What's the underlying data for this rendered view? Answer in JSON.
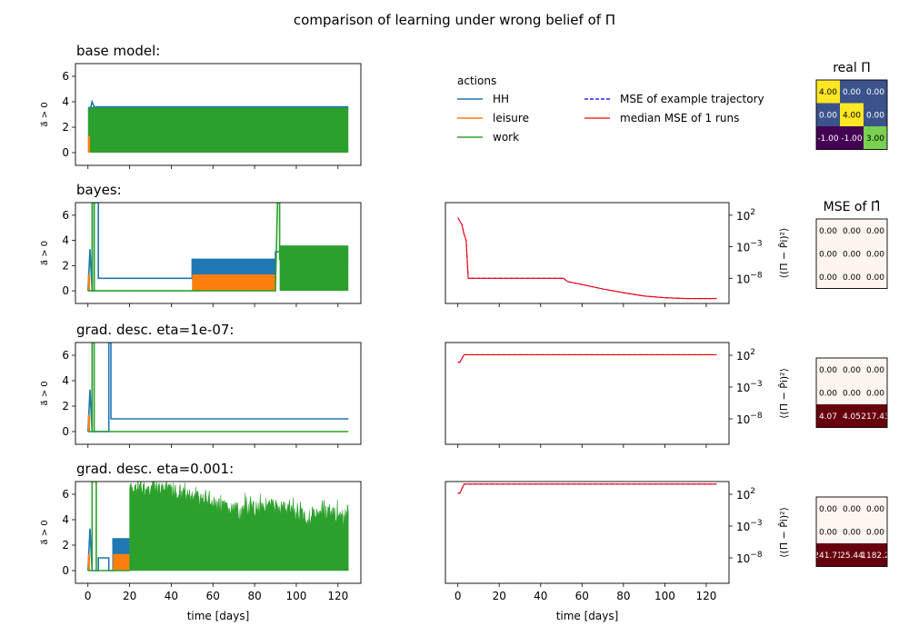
{
  "figure": {
    "title": "comparison of learning under wrong belief of Π",
    "legend": {
      "actions_title": "actions",
      "actions": [
        {
          "label": "HH",
          "color": "#1f77b4",
          "style": "solid"
        },
        {
          "label": "leisure",
          "color": "#ff7f0e",
          "style": "solid"
        },
        {
          "label": "work",
          "color": "#2ca02c",
          "style": "solid"
        }
      ],
      "mse": [
        {
          "label": "MSE of example trajectory",
          "color": "#0000ff",
          "style": "dashed"
        },
        {
          "label": "median MSE of 1 runs",
          "color": "#ff0000",
          "style": "solid"
        }
      ]
    },
    "xlabel": "time [days]",
    "left_ylabel": "a⃗ > 0",
    "right_ylabel": "⟨(Π − P̂i)²⟩",
    "real_pi_title": "real Π",
    "mse_pi_title": "MSE of Π̂"
  },
  "chart_data": [
    {
      "type": "line",
      "panel": "actions",
      "title": "base model:",
      "xlim": [
        -6,
        131
      ],
      "ylim": [
        -1,
        7
      ],
      "yticks": [
        0,
        2,
        4,
        6
      ],
      "xticks": [
        0,
        20,
        40,
        60,
        80,
        100,
        120
      ],
      "segments": [
        {
          "series": "work",
          "kind": "band",
          "x": [
            0,
            125
          ],
          "low": 0,
          "high": 3.6
        },
        {
          "series": "HH",
          "kind": "line",
          "x": [
            1,
            2,
            3,
            125
          ],
          "y": [
            3.3,
            4.0,
            3.6,
            3.6
          ]
        },
        {
          "series": "leisure",
          "kind": "band",
          "x": [
            0,
            1
          ],
          "low": 0,
          "high": 1.3
        }
      ]
    },
    {
      "type": "line",
      "panel": "actions",
      "title": "bayes:",
      "xlim": [
        -6,
        131
      ],
      "ylim": [
        -1,
        7
      ],
      "yticks": [
        0,
        2,
        4,
        6
      ],
      "xticks": [
        0,
        20,
        40,
        60,
        80,
        100,
        120
      ],
      "segments": [
        {
          "series": "HH",
          "kind": "line",
          "x": [
            0,
            1,
            2,
            3,
            3,
            5,
            5,
            50,
            50,
            90,
            90,
            125
          ],
          "y": [
            0,
            3.3,
            0,
            0,
            7,
            7,
            1,
            1,
            2.5,
            2.5,
            3.1,
            3.1
          ]
        },
        {
          "series": "HH",
          "kind": "band",
          "x": [
            50,
            90
          ],
          "low": 0,
          "high": 2.5
        },
        {
          "series": "leisure",
          "kind": "band",
          "x": [
            50,
            90
          ],
          "low": 0,
          "high": 1.3
        },
        {
          "series": "leisure",
          "kind": "band",
          "x": [
            0,
            1
          ],
          "low": 0,
          "high": 1.3
        },
        {
          "series": "work",
          "kind": "line",
          "x": [
            0,
            2,
            2,
            3,
            3,
            50,
            90,
            91,
            92,
            92,
            125
          ],
          "y": [
            0,
            0,
            7,
            7,
            0,
            0,
            0,
            7,
            7,
            2.5,
            2.5
          ]
        },
        {
          "series": "work",
          "kind": "band",
          "x": [
            92,
            125
          ],
          "low": 0,
          "high": 3.6
        }
      ]
    },
    {
      "type": "line",
      "panel": "actions",
      "title": "grad. desc. eta=1e-07:",
      "xlim": [
        -6,
        131
      ],
      "ylim": [
        -1,
        7
      ],
      "yticks": [
        0,
        2,
        4,
        6
      ],
      "xticks": [
        0,
        20,
        40,
        60,
        80,
        100,
        120
      ],
      "segments": [
        {
          "series": "HH",
          "kind": "line",
          "x": [
            0,
            1,
            2,
            3,
            10,
            10,
            11,
            11,
            125
          ],
          "y": [
            0,
            3.3,
            0,
            0,
            0,
            7,
            7,
            1,
            1
          ]
        },
        {
          "series": "leisure",
          "kind": "band",
          "x": [
            0,
            1
          ],
          "low": 0,
          "high": 1.3
        },
        {
          "series": "work",
          "kind": "line",
          "x": [
            0,
            2,
            2,
            3,
            3,
            125
          ],
          "y": [
            0,
            0,
            7,
            7,
            0,
            0
          ]
        }
      ]
    },
    {
      "type": "line",
      "panel": "actions",
      "title": "grad. desc. eta=0.001:",
      "xlim": [
        -6,
        131
      ],
      "ylim": [
        -1,
        7
      ],
      "yticks": [
        0,
        2,
        4,
        6
      ],
      "xticks": [
        0,
        20,
        40,
        60,
        80,
        100,
        120
      ],
      "segments": [
        {
          "series": "HH",
          "kind": "line",
          "x": [
            0,
            1,
            2,
            3,
            5,
            5,
            10,
            10,
            12,
            12,
            20
          ],
          "y": [
            0,
            3.3,
            0,
            0,
            0,
            1,
            1,
            0,
            0,
            2.5,
            2.5
          ]
        },
        {
          "series": "HH",
          "kind": "band",
          "x": [
            12,
            20
          ],
          "low": 0,
          "high": 2.5
        },
        {
          "series": "leisure",
          "kind": "band",
          "x": [
            12,
            20
          ],
          "low": 0,
          "high": 1.3
        },
        {
          "series": "leisure",
          "kind": "band",
          "x": [
            0,
            1
          ],
          "low": 0,
          "high": 1.3
        },
        {
          "series": "work",
          "kind": "line",
          "x": [
            0,
            2,
            2,
            4,
            4,
            20
          ],
          "y": [
            0,
            0,
            7,
            7,
            0,
            0
          ]
        },
        {
          "series": "work",
          "kind": "noise",
          "x": [
            20,
            125
          ],
          "profile": [
            [
              20,
              7
            ],
            [
              35,
              7
            ],
            [
              45,
              6.6
            ],
            [
              55,
              6.2
            ],
            [
              65,
              5.5
            ],
            [
              75,
              5.3
            ],
            [
              85,
              5.8
            ],
            [
              95,
              5.5
            ],
            [
              105,
              4.8
            ],
            [
              115,
              5.2
            ],
            [
              125,
              4.6
            ]
          ]
        }
      ]
    },
    {
      "type": "line",
      "panel": "mse",
      "scale": "log",
      "xlim": [
        -6,
        131
      ],
      "ylog_range": [
        -12,
        4
      ],
      "yticks_exp": [
        2,
        -3,
        -8
      ],
      "series": [
        {
          "name": "MSE of example trajectory",
          "points": [
            [
              0,
              40.0
            ],
            [
              2,
              3.0
            ],
            [
              3,
              0.1
            ],
            [
              4,
              0.01
            ],
            [
              5,
              1e-08
            ],
            [
              51,
              1e-08
            ],
            [
              53,
              3e-09
            ],
            [
              60,
              1e-09
            ],
            [
              70,
              2e-10
            ],
            [
              80,
              5e-11
            ],
            [
              90,
              1.5e-11
            ],
            [
              100,
              8e-12
            ],
            [
              110,
              6e-12
            ],
            [
              125,
              6e-12
            ]
          ]
        },
        {
          "name": "median MSE of 1 runs",
          "points": [
            [
              0,
              40.0
            ],
            [
              2,
              3.0
            ],
            [
              3,
              0.1
            ],
            [
              4,
              0.01
            ],
            [
              5,
              1e-08
            ],
            [
              51,
              1e-08
            ],
            [
              53,
              3e-09
            ],
            [
              60,
              1e-09
            ],
            [
              70,
              2e-10
            ],
            [
              80,
              5e-11
            ],
            [
              90,
              1.5e-11
            ],
            [
              100,
              8e-12
            ],
            [
              110,
              6e-12
            ],
            [
              125,
              6e-12
            ]
          ]
        }
      ]
    },
    {
      "type": "line",
      "panel": "mse",
      "scale": "log",
      "xlim": [
        -6,
        131
      ],
      "ylog_range": [
        -12,
        4
      ],
      "yticks_exp": [
        2,
        -3,
        -8
      ],
      "series": [
        {
          "name": "MSE of example trajectory",
          "points": [
            [
              0,
              8.0
            ],
            [
              1,
              8.0
            ],
            [
              3,
              120.0
            ],
            [
              125,
              120.0
            ]
          ]
        },
        {
          "name": "median MSE of 1 runs",
          "points": [
            [
              0,
              8.0
            ],
            [
              1,
              8.0
            ],
            [
              3,
              120.0
            ],
            [
              125,
              120.0
            ]
          ]
        }
      ]
    },
    {
      "type": "line",
      "panel": "mse",
      "scale": "log",
      "xlim": [
        -6,
        131
      ],
      "ylog_range": [
        -12,
        4
      ],
      "yticks_exp": [
        2,
        -3,
        -8
      ],
      "series": [
        {
          "name": "MSE of example trajectory",
          "points": [
            [
              0,
              150.0
            ],
            [
              1,
              150.0
            ],
            [
              3,
              4000.0
            ],
            [
              125,
              4000.0
            ]
          ]
        },
        {
          "name": "median MSE of 1 runs",
          "points": [
            [
              0,
              150.0
            ],
            [
              1,
              150.0
            ],
            [
              3,
              4000.0
            ],
            [
              125,
              4000.0
            ]
          ]
        }
      ]
    },
    {
      "type": "heatmap",
      "panel": "matrix",
      "title": "real Π",
      "cells": [
        [
          "4.00",
          "0.00",
          "0.00"
        ],
        [
          "0.00",
          "4.00",
          "0.00"
        ],
        [
          "-1.00",
          "-1.00",
          "3.00"
        ]
      ],
      "colors": [
        [
          "#fde725",
          "#3b528b",
          "#3b528b"
        ],
        [
          "#3b528b",
          "#fde725",
          "#3b528b"
        ],
        [
          "#440154",
          "#440154",
          "#7ad151"
        ]
      ],
      "text_colors": [
        [
          "#000000",
          "#ffffff",
          "#ffffff"
        ],
        [
          "#ffffff",
          "#000000",
          "#ffffff"
        ],
        [
          "#ffffff",
          "#ffffff",
          "#000000"
        ]
      ]
    },
    {
      "type": "heatmap",
      "panel": "matrix",
      "title": "MSE of Π̂",
      "cells": [
        [
          "0.00",
          "0.00",
          "0.00"
        ],
        [
          "0.00",
          "0.00",
          "0.00"
        ],
        [
          "0.00",
          "0.00",
          "0.00"
        ]
      ],
      "colors": [
        [
          "#fff5f0",
          "#fff5f0",
          "#fff5f0"
        ],
        [
          "#fff5f0",
          "#fff5f0",
          "#fff5f0"
        ],
        [
          "#fff5f0",
          "#fff5f0",
          "#fff5f0"
        ]
      ],
      "text_colors": [
        [
          "#000000",
          "#000000",
          "#000000"
        ],
        [
          "#000000",
          "#000000",
          "#000000"
        ],
        [
          "#000000",
          "#000000",
          "#000000"
        ]
      ]
    },
    {
      "type": "heatmap",
      "panel": "matrix",
      "cells": [
        [
          "0.00",
          "0.00",
          "0.00"
        ],
        [
          "0.00",
          "0.00",
          "0.00"
        ],
        [
          "4.07",
          "4.05",
          "217.43"
        ]
      ],
      "colors": [
        [
          "#fff5f0",
          "#fff5f0",
          "#fff5f0"
        ],
        [
          "#fff5f0",
          "#fff5f0",
          "#fff5f0"
        ],
        [
          "#67000d",
          "#67000d",
          "#67000d"
        ]
      ],
      "text_colors": [
        [
          "#000000",
          "#000000",
          "#000000"
        ],
        [
          "#000000",
          "#000000",
          "#000000"
        ],
        [
          "#ffffff",
          "#ffffff",
          "#ffffff"
        ]
      ]
    },
    {
      "type": "heatmap",
      "panel": "matrix",
      "cells": [
        [
          "0.00",
          "0.00",
          "0.00"
        ],
        [
          "0.00",
          "0.00",
          "0.00"
        ],
        [
          "241.71",
          "25.44",
          "1182.2"
        ]
      ],
      "colors": [
        [
          "#fff5f0",
          "#fff5f0",
          "#fff5f0"
        ],
        [
          "#fff5f0",
          "#fff5f0",
          "#fff5f0"
        ],
        [
          "#67000d",
          "#67000d",
          "#67000d"
        ]
      ],
      "text_colors": [
        [
          "#000000",
          "#000000",
          "#000000"
        ],
        [
          "#000000",
          "#000000",
          "#000000"
        ],
        [
          "#ffffff",
          "#ffffff",
          "#ffffff"
        ]
      ]
    }
  ]
}
